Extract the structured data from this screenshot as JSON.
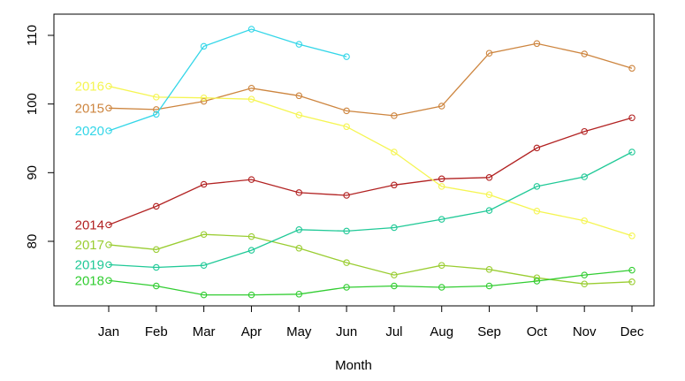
{
  "chart_data": {
    "type": "line",
    "title": "",
    "xlabel": "Month",
    "ylabel": "",
    "categories": [
      "Jan",
      "Feb",
      "Mar",
      "Apr",
      "May",
      "Jun",
      "Jul",
      "Aug",
      "Sep",
      "Oct",
      "Nov",
      "Dec"
    ],
    "yticks": [
      80,
      90,
      100,
      110
    ],
    "ylim": [
      71,
      113
    ],
    "grid": false,
    "legend": "none",
    "series": [
      {
        "name": "2014",
        "color": "#b22222",
        "values": [
          82.4,
          85.1,
          88.3,
          89.0,
          87.1,
          86.7,
          88.2,
          89.1,
          89.3,
          93.6,
          96.0,
          98.0
        ]
      },
      {
        "name": "2015",
        "color": "#cd853f",
        "values": [
          99.4,
          99.2,
          100.4,
          102.3,
          101.2,
          99.0,
          98.3,
          99.7,
          107.4,
          108.8,
          107.3,
          105.2
        ]
      },
      {
        "name": "2016",
        "color": "#f5f552",
        "values": [
          102.6,
          101.0,
          100.9,
          100.7,
          98.4,
          96.7,
          93.0,
          88.0,
          86.8,
          84.4,
          83.0,
          80.8
        ]
      },
      {
        "name": "2017",
        "color": "#9acd32",
        "values": [
          79.5,
          78.8,
          81.0,
          80.7,
          79.0,
          76.9,
          75.1,
          76.5,
          75.9,
          74.7,
          73.8,
          74.1
        ]
      },
      {
        "name": "2018",
        "color": "#32cd32",
        "values": [
          74.3,
          73.5,
          72.2,
          72.2,
          72.3,
          73.3,
          73.5,
          73.3,
          73.5,
          74.2,
          75.1,
          75.8
        ]
      },
      {
        "name": "2019",
        "color": "#20c997",
        "values": [
          76.6,
          76.2,
          76.5,
          78.7,
          81.7,
          81.5,
          82.0,
          83.2,
          84.5,
          88.0,
          89.4,
          93.0
        ]
      },
      {
        "name": "2020",
        "color": "#33d6e8",
        "values": [
          96.1,
          98.5,
          108.4,
          110.9,
          108.7,
          106.9,
          null,
          null,
          null,
          null,
          null,
          null
        ]
      }
    ]
  }
}
